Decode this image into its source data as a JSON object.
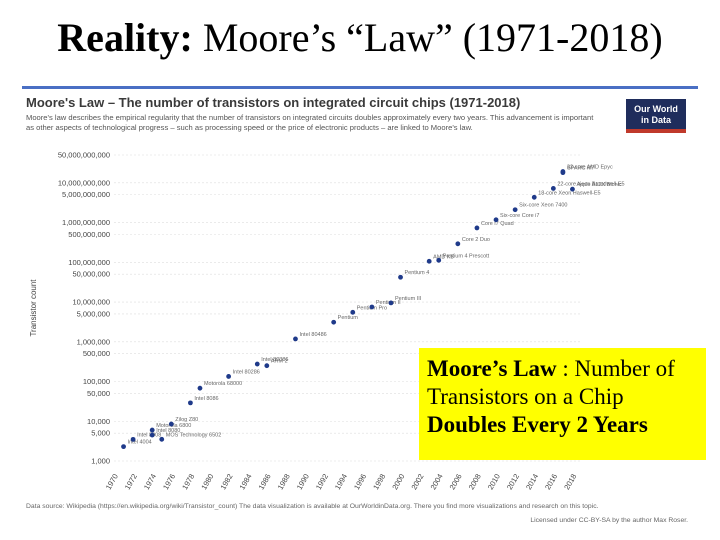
{
  "slide": {
    "title_bold": "Reality:",
    "title_rest": " Moore’s “Law” (1971-2018)"
  },
  "figure": {
    "title": "Moore's Law – The number of transistors on integrated circuit chips (1971-2018)",
    "description": "Moore's law describes the empirical regularity that the number of transistors on integrated circuits doubles approximately every two years. This advancement is important as other aspects of technological progress – such as processing speed or the price of electronic products – are linked to Moore's law.",
    "logo_line1": "Our World",
    "logo_line2": "in Data",
    "footer": "Data source: Wikipedia (https://en.wikipedia.org/wiki/Transistor_count) The data visualization is available at OurWorldinData.org. There you find more visualizations and research on this topic.",
    "license": "Licensed under CC-BY-SA by the author Max Roser."
  },
  "callout": {
    "bold1": "Moore’s Law",
    "text1": " : Number of Transistors on a Chip",
    "bold2": "Doubles Every 2 Years"
  },
  "colors": {
    "rule": "#4a6fc4",
    "points": "#1f3a8a",
    "callout": "#ffff00"
  },
  "chart_data": {
    "type": "scatter",
    "title": "Moore's Law – The number of transistors on integrated circuit chips (1971-2018)",
    "ylabel": "Transistor count",
    "xlabel": "",
    "yscale": "log",
    "xlim": [
      1970,
      2019
    ],
    "ylim": [
      1000,
      50000000000
    ],
    "y_ticks": [
      1000,
      5000,
      10000,
      50000,
      100000,
      500000,
      1000000,
      5000000,
      10000000,
      50000000,
      100000000,
      500000000,
      1000000000,
      5000000000,
      10000000000,
      50000000000
    ],
    "y_tick_labels": [
      "1,000",
      "5,000",
      "10,000",
      "50,000",
      "100,000",
      "500,000",
      "1,000,000",
      "5,000,000",
      "10,000,000",
      "50,000,000",
      "100,000,000",
      "500,000,000",
      "1,000,000,000",
      "5,000,000,000",
      "10,000,000,000",
      "50,000,000,000"
    ],
    "x_ticks": [
      1970,
      1972,
      1974,
      1976,
      1978,
      1980,
      1982,
      1984,
      1986,
      1988,
      1990,
      1992,
      1994,
      1996,
      1998,
      2000,
      2002,
      2004,
      2006,
      2008,
      2010,
      2012,
      2014,
      2016,
      2018
    ],
    "x_tick_labels": [
      "1970",
      "1972",
      "1974",
      "1976",
      "1978",
      "1980",
      "1982",
      "1984",
      "1986",
      "1988",
      "1990",
      "1992",
      "1994",
      "1996",
      "1998",
      "2000",
      "2002",
      "2004",
      "2006",
      "2008",
      "2010",
      "2012",
      "2014",
      "2016",
      "2018"
    ],
    "points": [
      {
        "x": 1971,
        "y": 2300,
        "label": "Intel 4004"
      },
      {
        "x": 1972,
        "y": 3500,
        "label": "Intel 8008"
      },
      {
        "x": 1974,
        "y": 4500,
        "label": "Intel 8080"
      },
      {
        "x": 1974,
        "y": 6000,
        "label": "Motorola 6800"
      },
      {
        "x": 1975,
        "y": 3510,
        "label": "MOS Technology 6502"
      },
      {
        "x": 1976,
        "y": 8500,
        "label": "Zilog Z80"
      },
      {
        "x": 1978,
        "y": 29000,
        "label": "Intel 8086"
      },
      {
        "x": 1979,
        "y": 68000,
        "label": "Motorola 68000"
      },
      {
        "x": 1982,
        "y": 134000,
        "label": "Intel 80286"
      },
      {
        "x": 1985,
        "y": 275000,
        "label": "Intel 80386"
      },
      {
        "x": 1986,
        "y": 250000,
        "label": "ARM 2"
      },
      {
        "x": 1989,
        "y": 1180235,
        "label": "Intel 80486"
      },
      {
        "x": 1993,
        "y": 3100000,
        "label": "Pentium"
      },
      {
        "x": 1995,
        "y": 5500000,
        "label": "Pentium Pro"
      },
      {
        "x": 1997,
        "y": 7500000,
        "label": "Pentium II"
      },
      {
        "x": 1999,
        "y": 9500000,
        "label": "Pentium III"
      },
      {
        "x": 2000,
        "y": 42000000,
        "label": "Pentium 4"
      },
      {
        "x": 2003,
        "y": 105900000,
        "label": "AMD K8"
      },
      {
        "x": 2004,
        "y": 112000000,
        "label": "Pentium 4 Prescott"
      },
      {
        "x": 2006,
        "y": 291000000,
        "label": "Core 2 Duo"
      },
      {
        "x": 2008,
        "y": 731000000,
        "label": "Core i7 Quad"
      },
      {
        "x": 2010,
        "y": 1170000000,
        "label": "Six-core Core i7"
      },
      {
        "x": 2012,
        "y": 2100000000,
        "label": "Six-core Xeon 7400"
      },
      {
        "x": 2014,
        "y": 4310000000,
        "label": "18-core Xeon Haswell-E5"
      },
      {
        "x": 2016,
        "y": 7200000000,
        "label": "22-core Xeon Broadwell-E5"
      },
      {
        "x": 2017,
        "y": 19200000000,
        "label": "32-core AMD Epyc"
      },
      {
        "x": 2017,
        "y": 18000000000,
        "label": "SPARC M7"
      },
      {
        "x": 2018,
        "y": 6900000000,
        "label": "Apple A12X Bionic"
      }
    ]
  }
}
